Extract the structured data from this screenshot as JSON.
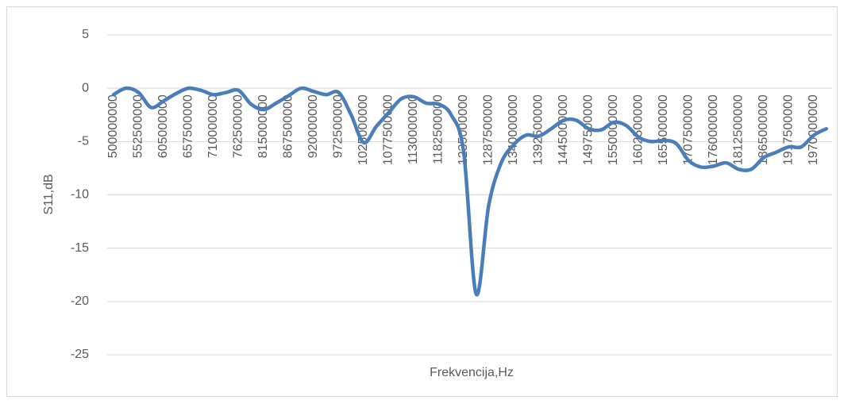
{
  "chart_data": {
    "type": "line",
    "xlabel": "Frekvencija,Hz",
    "ylabel": "S11,dB",
    "categories": [
      "500000000",
      null,
      "552500000",
      null,
      "605000000",
      null,
      "657500000",
      null,
      "710000000",
      null,
      "762500000",
      null,
      "815000000",
      null,
      "867500000",
      null,
      "920000000",
      null,
      "972500000",
      null,
      "1025000000",
      null,
      "1077500000",
      null,
      "1130000000",
      null,
      "1182500000",
      null,
      "1235000000",
      null,
      "1287500000",
      null,
      "1340000000",
      null,
      "1392500000",
      null,
      "1445000000",
      null,
      "1497500000",
      null,
      "1550000000",
      null,
      "1602500000",
      null,
      "1655000000",
      null,
      "1707500000",
      null,
      "1760000000",
      null,
      "1812500000",
      null,
      "1865000000",
      null,
      "1917500000",
      null,
      "1970000000",
      null
    ],
    "series": [
      {
        "name": "S11",
        "color": "#4a7ebb",
        "values": [
          -0.6,
          0,
          -0.4,
          -1.8,
          -1.2,
          -0.5,
          0,
          -0.2,
          -0.6,
          -0.4,
          -0.2,
          -1.5,
          -2.0,
          -1.4,
          -0.7,
          0,
          -0.3,
          -0.6,
          -0.4,
          -2.5,
          -5.1,
          -3.6,
          -2.3,
          -1.0,
          -0.8,
          -1.4,
          -1.5,
          -2.5,
          -6,
          -19.3,
          -11,
          -7,
          -5.3,
          -4.4,
          -4.5,
          -3.8,
          -3.0,
          -3.0,
          -3.8,
          -3.9,
          -3.2,
          -3.5,
          -4.6,
          -5.0,
          -4.9,
          -5.2,
          -6.8,
          -7.4,
          -7.3,
          -7.0,
          -7.6,
          -7.6,
          -6.5,
          -6.0,
          -5.5,
          -5.5,
          -4.4,
          -3.8
        ]
      }
    ],
    "ylim": [
      -25,
      5
    ],
    "yticks": [
      -25,
      -20,
      -15,
      -10,
      -5,
      0,
      5
    ],
    "grid": true
  }
}
